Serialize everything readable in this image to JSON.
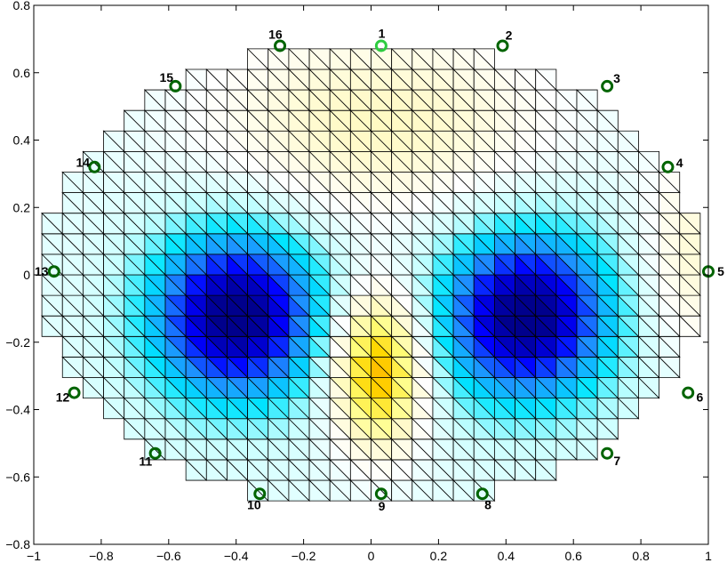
{
  "chart_data": {
    "type": "heatmap",
    "title": "",
    "xlabel": "",
    "ylabel": "",
    "xlim": [
      -1,
      1
    ],
    "ylim": [
      -0.8,
      0.8
    ],
    "xticks": [
      "−1",
      "−0.8",
      "−0.6",
      "−0.4",
      "−0.2",
      "0",
      "0.2",
      "0.4",
      "0.6",
      "0.8",
      "1"
    ],
    "yticks": [
      "0.8",
      "0.6",
      "0.4",
      "0.2",
      "0",
      "−0.2",
      "−0.4",
      "−0.6",
      "−0.8"
    ],
    "grid": false,
    "mesh": "triangular finite element mesh",
    "colormap": [
      "#00008c",
      "#0000ff",
      "#1e90ff",
      "#00e5ff",
      "#c8ffff",
      "#ffffff",
      "#fffac8",
      "#ffff80",
      "#ffd700",
      "#ff9900"
    ],
    "electrode_color": "#006400",
    "highlight_electrode_color": "#2ecc40",
    "electrodes": [
      {
        "label": "1",
        "x": 0.03,
        "y": 0.68
      },
      {
        "label": "2",
        "x": 0.39,
        "y": 0.68
      },
      {
        "label": "3",
        "x": 0.7,
        "y": 0.56
      },
      {
        "label": "4",
        "x": 0.88,
        "y": 0.32
      },
      {
        "label": "5",
        "x": 1.0,
        "y": 0.01
      },
      {
        "label": "6",
        "x": 0.94,
        "y": -0.35
      },
      {
        "label": "7",
        "x": 0.7,
        "y": -0.53
      },
      {
        "label": "8",
        "x": 0.33,
        "y": -0.65
      },
      {
        "label": "9",
        "x": 0.03,
        "y": -0.65
      },
      {
        "label": "10",
        "x": -0.33,
        "y": -0.65
      },
      {
        "label": "11",
        "x": -0.64,
        "y": -0.53
      },
      {
        "label": "12",
        "x": -0.88,
        "y": -0.35
      },
      {
        "label": "13",
        "x": -0.94,
        "y": 0.01
      },
      {
        "label": "14",
        "x": -0.82,
        "y": 0.32
      },
      {
        "label": "15",
        "x": -0.58,
        "y": 0.56
      },
      {
        "label": "16",
        "x": -0.27,
        "y": 0.68
      }
    ]
  }
}
